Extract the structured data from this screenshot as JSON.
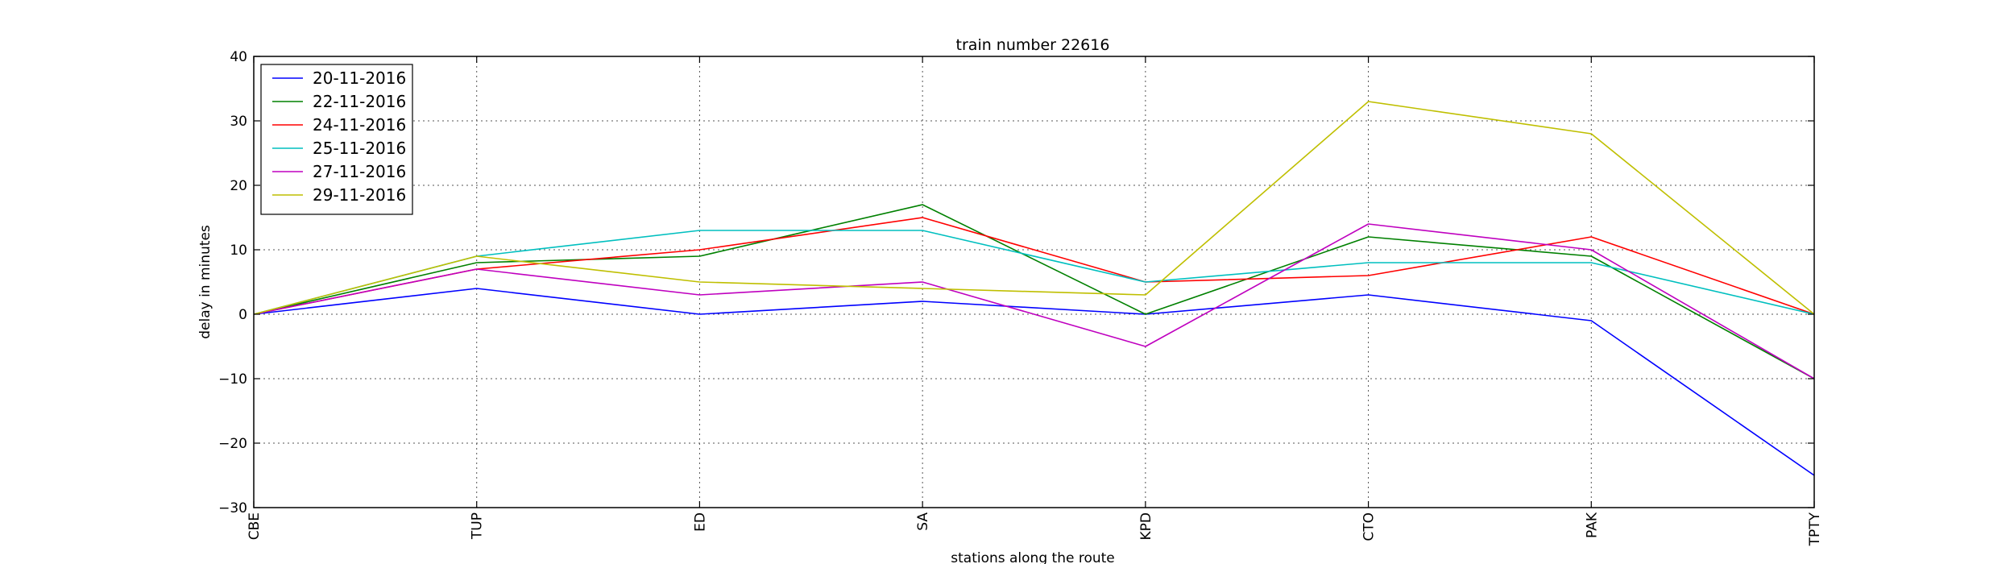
{
  "chart_data": {
    "type": "line",
    "title": "train number 22616",
    "xlabel": "stations along the route",
    "ylabel": "delay in minutes",
    "categories": [
      "CBE",
      "TUP",
      "ED",
      "SA",
      "KPD",
      "CTO",
      "PAK",
      "TPTY"
    ],
    "ylim": [
      -30,
      40
    ],
    "yticks": [
      -30,
      -20,
      -10,
      0,
      10,
      20,
      30,
      40
    ],
    "grid": true,
    "legend_position": "upper-left",
    "series": [
      {
        "name": "20-11-2016",
        "color": "#0000ff",
        "values": [
          0,
          4,
          0,
          2,
          0,
          3,
          -1,
          -25
        ]
      },
      {
        "name": "22-11-2016",
        "color": "#008000",
        "values": [
          0,
          8,
          9,
          17,
          0,
          12,
          9,
          -10
        ]
      },
      {
        "name": "24-11-2016",
        "color": "#ff0000",
        "values": [
          0,
          7,
          10,
          15,
          5,
          6,
          12,
          0
        ]
      },
      {
        "name": "25-11-2016",
        "color": "#00bfbf",
        "values": [
          0,
          9,
          13,
          13,
          5,
          8,
          8,
          0
        ]
      },
      {
        "name": "27-11-2016",
        "color": "#bf00bf",
        "values": [
          0,
          7,
          3,
          5,
          -5,
          14,
          10,
          -10
        ]
      },
      {
        "name": "29-11-2016",
        "color": "#bfbf00",
        "values": [
          0,
          9,
          5,
          4,
          3,
          33,
          28,
          0
        ]
      }
    ]
  }
}
